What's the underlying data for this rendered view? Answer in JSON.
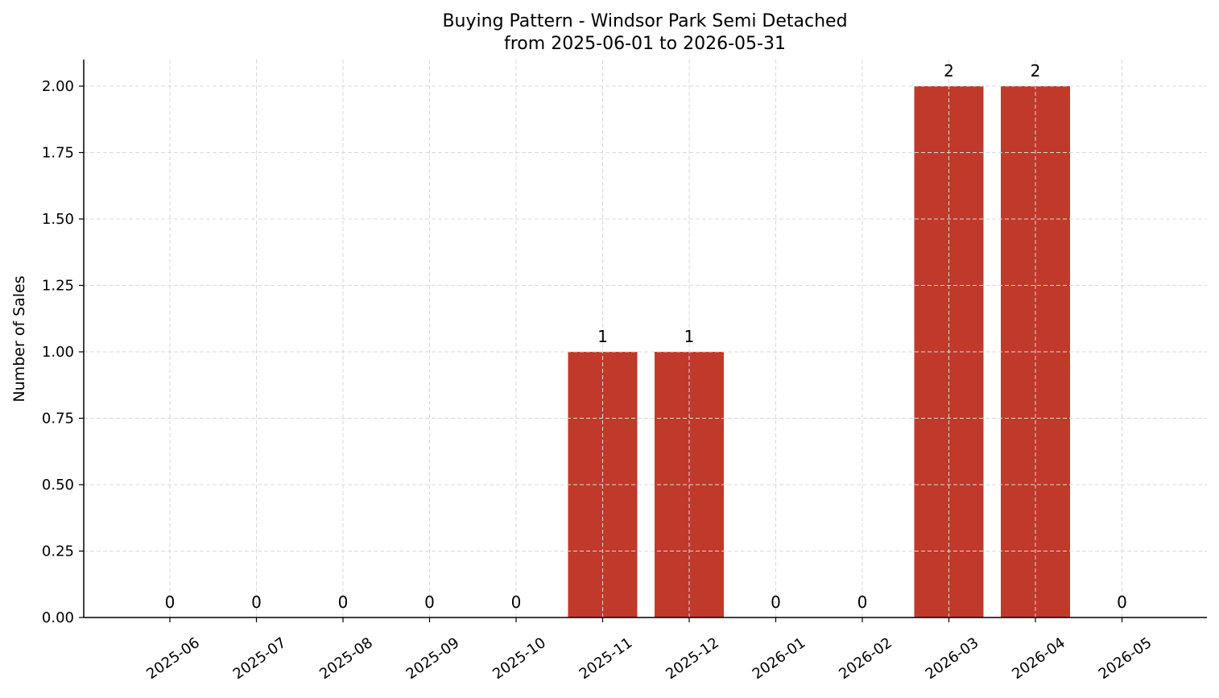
{
  "chart_data": {
    "type": "bar",
    "title": "Buying Pattern - Windsor Park Semi Detached",
    "subtitle": "from 2025-06-01 to 2026-05-31",
    "xlabel": "",
    "ylabel": "Number of Sales",
    "categories": [
      "2025-06",
      "2025-07",
      "2025-08",
      "2025-09",
      "2025-10",
      "2025-11",
      "2025-12",
      "2026-01",
      "2026-02",
      "2026-03",
      "2026-04",
      "2026-05"
    ],
    "values": [
      0,
      0,
      0,
      0,
      0,
      1,
      1,
      0,
      0,
      2,
      2,
      0
    ],
    "data_labels": [
      "0",
      "0",
      "0",
      "0",
      "0",
      "1",
      "1",
      "0",
      "0",
      "2",
      "2",
      "0"
    ],
    "ylim": [
      0,
      2.1
    ],
    "yticks": [
      0,
      0.25,
      0.5,
      0.75,
      1,
      1.25,
      1.5,
      1.75,
      2
    ],
    "ytick_labels": [
      "0.00",
      "0.25",
      "0.50",
      "0.75",
      "1.00",
      "1.25",
      "1.50",
      "1.75",
      "2.00"
    ],
    "grid": true,
    "legend": "none",
    "bar_color": "#c0392b"
  }
}
